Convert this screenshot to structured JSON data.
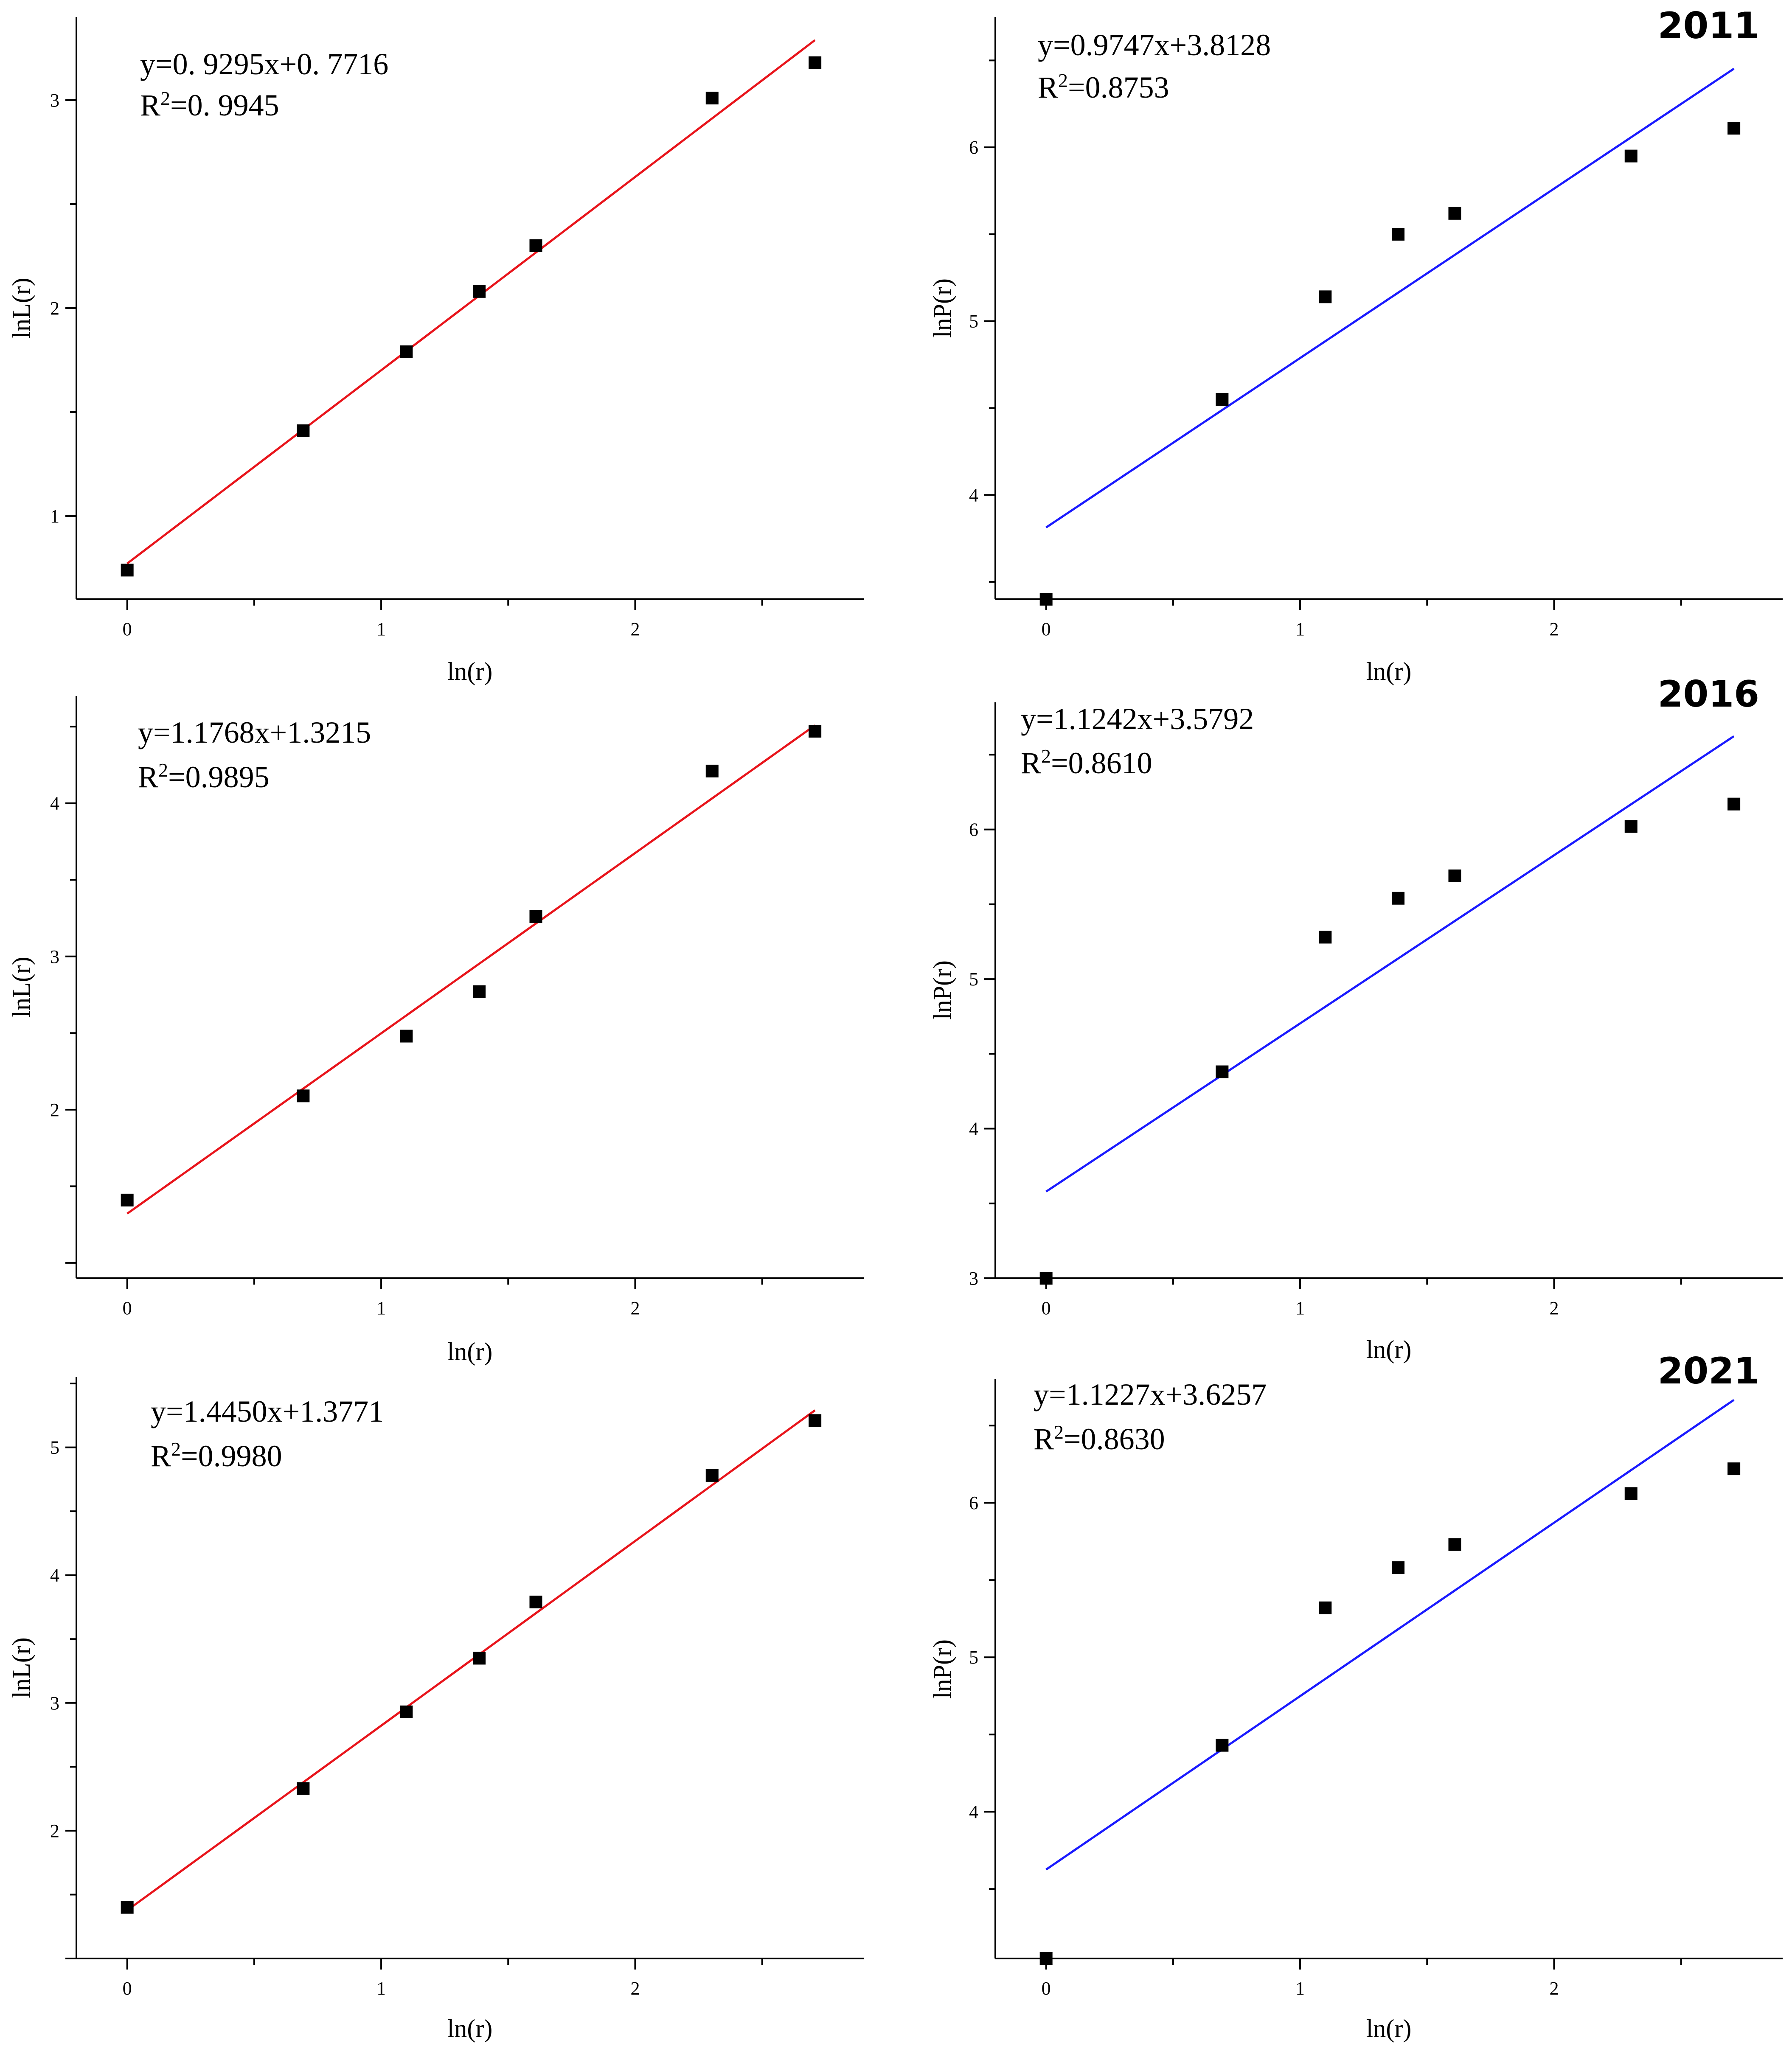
{
  "colors": {
    "red_fit": "#e8141b",
    "blue_fit": "#1a1aff",
    "marker": "#000000"
  },
  "chart_data": [
    {
      "type": "scatter",
      "title": "",
      "xlabel": "ln(r)",
      "ylabel": "lnL(r)",
      "xlim": [
        -0.2,
        2.9
      ],
      "ylim": [
        0.6,
        3.4
      ],
      "xticks": [
        0,
        1,
        2
      ],
      "xtick_labels": [
        "0",
        "1",
        "2"
      ],
      "yticks": [
        1,
        2,
        3
      ],
      "ytick_labels": [
        "1",
        "2",
        "3"
      ],
      "x": [
        0,
        0.693,
        1.099,
        1.386,
        1.609,
        2.303,
        2.708
      ],
      "y": [
        0.74,
        1.41,
        1.79,
        2.08,
        2.3,
        3.01,
        3.18
      ],
      "fit": {
        "slope": 0.9295,
        "intercept": 0.7716,
        "x_range": [
          0,
          2.708
        ],
        "color": "red"
      },
      "equation": "y=0. 9295x+0. 7716",
      "r2_prefix": "R",
      "r2_sup": "2",
      "r2_value": "=0. 9945",
      "year_label": ""
    },
    {
      "type": "scatter",
      "title": "",
      "xlabel": "ln(r)",
      "ylabel": "lnP(r)",
      "xlim": [
        -0.2,
        2.9
      ],
      "ylim": [
        3.4,
        6.75
      ],
      "xticks": [
        0,
        1,
        2
      ],
      "xtick_labels": [
        "0",
        "1",
        "2"
      ],
      "yticks": [
        4,
        5,
        6
      ],
      "ytick_labels": [
        "4",
        "5",
        "6"
      ],
      "x": [
        0,
        0.693,
        1.099,
        1.386,
        1.609,
        2.303,
        2.708
      ],
      "y": [
        3.4,
        4.55,
        5.14,
        5.5,
        5.62,
        5.95,
        6.11
      ],
      "fit": {
        "slope": 0.9747,
        "intercept": 3.8128,
        "x_range": [
          0,
          2.708
        ],
        "color": "blue"
      },
      "equation": "y=0.9747x+3.8128",
      "r2_prefix": "R",
      "r2_sup": "2",
      "r2_value": "=0.8753",
      "year_label": "2011"
    },
    {
      "type": "scatter",
      "title": "",
      "xlabel": "ln(r)",
      "ylabel": "lnL(r)",
      "xlim": [
        -0.2,
        2.9
      ],
      "ylim": [
        0.9,
        4.7
      ],
      "xticks": [
        0,
        1,
        2
      ],
      "xtick_labels": [
        "0",
        "1",
        "2"
      ],
      "yticks": [
        2,
        3,
        4
      ],
      "ytick_labels": [
        "2",
        "3",
        "4"
      ],
      "x": [
        0,
        0.693,
        1.099,
        1.386,
        1.609,
        2.303,
        2.708
      ],
      "y": [
        1.41,
        2.09,
        2.48,
        2.77,
        3.26,
        4.21,
        4.47
      ],
      "fit": {
        "slope": 1.1768,
        "intercept": 1.3215,
        "x_range": [
          0,
          2.708
        ],
        "color": "red"
      },
      "equation": "y=1.1768x+1.3215",
      "r2_prefix": "R",
      "r2_sup": "2",
      "r2_value": "=0.9895",
      "year_label": ""
    },
    {
      "type": "scatter",
      "title": "",
      "xlabel": "ln(r)",
      "ylabel": "lnP(r)",
      "xlim": [
        -0.2,
        2.9
      ],
      "ylim": [
        3.0,
        6.85
      ],
      "xticks": [
        0,
        1,
        2
      ],
      "xtick_labels": [
        "0",
        "1",
        "2"
      ],
      "yticks": [
        3,
        4,
        5,
        6
      ],
      "ytick_labels": [
        "3",
        "4",
        "5",
        "6"
      ],
      "x": [
        0,
        0.693,
        1.099,
        1.386,
        1.609,
        2.303,
        2.708
      ],
      "y": [
        3.0,
        4.38,
        5.28,
        5.54,
        5.69,
        6.02,
        6.17
      ],
      "fit": {
        "slope": 1.1242,
        "intercept": 3.5792,
        "x_range": [
          0,
          2.708
        ],
        "color": "blue"
      },
      "equation": "y=1.1242x+3.5792",
      "r2_prefix": "R",
      "r2_sup": "2",
      "r2_value": "=0.8610",
      "year_label": "2016"
    },
    {
      "type": "scatter",
      "title": "",
      "xlabel": "ln(r)",
      "ylabel": "lnL(r)",
      "xlim": [
        -0.2,
        2.9
      ],
      "ylim": [
        1.0,
        5.55
      ],
      "xticks": [
        0,
        1,
        2
      ],
      "xtick_labels": [
        "0",
        "1",
        "2"
      ],
      "yticks": [
        2,
        3,
        4,
        5
      ],
      "ytick_labels": [
        "2",
        "3",
        "4",
        "5"
      ],
      "x": [
        0,
        0.693,
        1.099,
        1.386,
        1.609,
        2.303,
        2.708
      ],
      "y": [
        1.4,
        2.33,
        2.93,
        3.35,
        3.79,
        4.78,
        5.21
      ],
      "fit": {
        "slope": 1.445,
        "intercept": 1.3771,
        "x_range": [
          0,
          2.708
        ],
        "color": "red"
      },
      "equation": "y=1.4450x+1.3771",
      "r2_prefix": "R",
      "r2_sup": "2",
      "r2_value": "=0.9980",
      "year_label": ""
    },
    {
      "type": "scatter",
      "title": "",
      "xlabel": "ln(r)",
      "ylabel": "lnP(r)",
      "xlim": [
        -0.2,
        2.9
      ],
      "ylim": [
        3.05,
        6.8
      ],
      "xticks": [
        0,
        1,
        2
      ],
      "xtick_labels": [
        "0",
        "1",
        "2"
      ],
      "yticks": [
        4,
        5,
        6
      ],
      "ytick_labels": [
        "4",
        "5",
        "6"
      ],
      "x": [
        0,
        0.693,
        1.099,
        1.386,
        1.609,
        2.303,
        2.708
      ],
      "y": [
        3.05,
        4.43,
        5.32,
        5.58,
        5.73,
        6.06,
        6.22
      ],
      "fit": {
        "slope": 1.1227,
        "intercept": 3.6257,
        "x_range": [
          0,
          2.708
        ],
        "color": "blue"
      },
      "equation": "y=1.1227x+3.6257",
      "r2_prefix": "R",
      "r2_sup": "2",
      "r2_value": "=0.8630",
      "year_label": "2021"
    }
  ]
}
